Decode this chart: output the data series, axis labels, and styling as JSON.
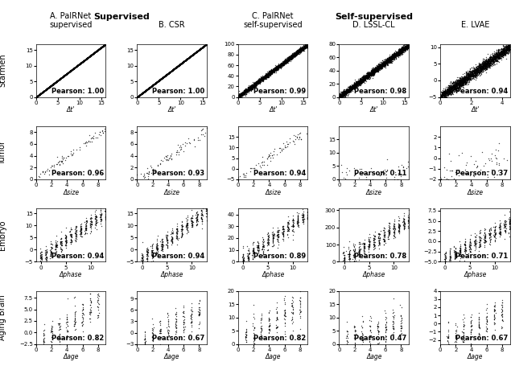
{
  "col_titles": [
    "A. PaIRNet\nsupervised",
    "B. CSR",
    "C. PaIRNet\nself-supervised",
    "D. LSSL-CL",
    "E. LVAE"
  ],
  "row_titles": [
    "Starmen",
    "Tumor",
    "Embryo",
    "Aging Brain"
  ],
  "group_titles": [
    "Supervised",
    "Self-supervised"
  ],
  "pearson_values": [
    [
      "1.00",
      "1.00",
      "0.99",
      "0.98",
      "0.94"
    ],
    [
      "0.96",
      "0.93",
      "0.94",
      "0.11",
      "0.37"
    ],
    [
      "0.94",
      "0.94",
      "0.89",
      "0.78",
      "0.71"
    ],
    [
      "0.82",
      "0.67",
      "0.82",
      "0.47",
      "0.67"
    ]
  ],
  "xlabels": [
    [
      "Δt'",
      "Δt'",
      "Δt'",
      "Δt'",
      "Δt'"
    ],
    [
      "Δsize",
      "Δsize",
      "Δsize",
      "Δsize",
      "Δsize"
    ],
    [
      "Δphase",
      "Δphase",
      "Δphase",
      "Δphase",
      "Δphase"
    ],
    [
      "Δage",
      "Δage",
      "Δage",
      "Δage",
      "Δage"
    ]
  ],
  "ylabels": [
    "",
    "",
    "",
    ""
  ],
  "xlims": [
    [
      [
        0,
        16
      ],
      [
        0,
        16
      ],
      [
        0,
        16
      ],
      [
        0,
        16
      ],
      [
        0,
        4.5
      ]
    ],
    [
      [
        0,
        9
      ],
      [
        0,
        9
      ],
      [
        0,
        9
      ],
      [
        0,
        9
      ],
      [
        0,
        9
      ]
    ],
    [
      [
        -1,
        13
      ],
      [
        -1,
        13
      ],
      [
        -1,
        13
      ],
      [
        -1,
        13
      ],
      [
        -1,
        13
      ]
    ],
    [
      [
        0,
        9
      ],
      [
        0,
        9
      ],
      [
        0,
        9
      ],
      [
        0,
        9
      ],
      [
        0,
        9
      ]
    ]
  ],
  "ylims": [
    [
      [
        0,
        17
      ],
      [
        0,
        17
      ],
      [
        0,
        100
      ],
      [
        0,
        80
      ],
      [
        -5,
        11
      ]
    ],
    [
      [
        0,
        9
      ],
      [
        0,
        9
      ],
      [
        -5,
        20
      ],
      [
        0,
        20
      ],
      [
        -2,
        3
      ]
    ],
    [
      [
        -5,
        17
      ],
      [
        -5,
        17
      ],
      [
        0,
        45
      ],
      [
        0,
        310
      ],
      [
        -5,
        8
      ]
    ],
    [
      [
        -2.5,
        9
      ],
      [
        -3,
        11
      ],
      [
        0,
        20
      ],
      [
        0,
        20
      ],
      [
        -2.5,
        4
      ]
    ]
  ],
  "xticks": [
    [
      [
        0,
        5,
        10,
        15
      ],
      [
        0,
        5,
        10,
        15
      ],
      [
        0,
        5,
        10,
        15
      ],
      [
        0,
        5,
        10,
        15
      ],
      [
        0,
        2,
        4
      ]
    ],
    [
      [
        0,
        2,
        4,
        6,
        8
      ],
      [
        0,
        2,
        4,
        6,
        8
      ],
      [
        0,
        2,
        4,
        6,
        8
      ],
      [
        0,
        2,
        4,
        6,
        8
      ],
      [
        0,
        2,
        4,
        6,
        8
      ]
    ],
    [
      [
        0,
        5,
        10
      ],
      [
        0,
        5,
        10
      ],
      [
        0,
        5,
        10
      ],
      [
        0,
        5,
        10
      ],
      [
        0,
        5,
        10
      ]
    ],
    [
      [
        0,
        2,
        4,
        6,
        8
      ],
      [
        0,
        2,
        4,
        6,
        8
      ],
      [
        0,
        2,
        4,
        6,
        8
      ],
      [
        0,
        2,
        4,
        6,
        8
      ],
      [
        0,
        2,
        4,
        6,
        8
      ]
    ]
  ],
  "yticks": [
    [
      [
        0,
        5,
        10,
        15
      ],
      [
        0,
        5,
        10,
        15
      ],
      [
        0,
        20,
        40,
        60,
        80,
        100
      ],
      [
        0,
        20,
        40,
        60,
        80
      ],
      [
        -5,
        0,
        5,
        10
      ]
    ],
    [
      [
        0,
        2,
        4,
        6,
        8
      ],
      [
        0,
        2,
        4,
        6,
        8
      ],
      [
        -5,
        0,
        5,
        10,
        15
      ],
      [
        0,
        5,
        10,
        15
      ],
      [
        -2,
        -1,
        0,
        1,
        2
      ]
    ],
    [
      [
        -5,
        0,
        5,
        10,
        15
      ],
      [
        -5,
        0,
        5,
        10,
        15
      ],
      [
        0,
        10,
        20,
        30,
        40
      ],
      [
        0,
        100,
        200,
        300
      ],
      [
        -5.0,
        -2.5,
        0,
        2.5,
        5.0,
        7.5
      ]
    ],
    [
      [
        -2.5,
        0,
        2.5,
        5.0,
        7.5
      ],
      [
        -3,
        0,
        3,
        6,
        9
      ],
      [
        0,
        5,
        10,
        15,
        20
      ],
      [
        0,
        5,
        10,
        15,
        20
      ],
      [
        -2,
        -1,
        0,
        1,
        2,
        3,
        4
      ]
    ]
  ],
  "dot_size": 1.0,
  "dot_color": "black",
  "dot_alpha": 0.7,
  "n_points": {
    "starmen": 3000,
    "tumor": 80,
    "embryo": 500,
    "aging": 200
  },
  "pearson_fontsize": 6,
  "pearson_bold": true,
  "axis_label_fontsize": 5.5,
  "tick_fontsize": 5,
  "row_label_fontsize": 7,
  "col_label_fontsize": 7,
  "group_label_fontsize": 8,
  "fig_bg": "white"
}
